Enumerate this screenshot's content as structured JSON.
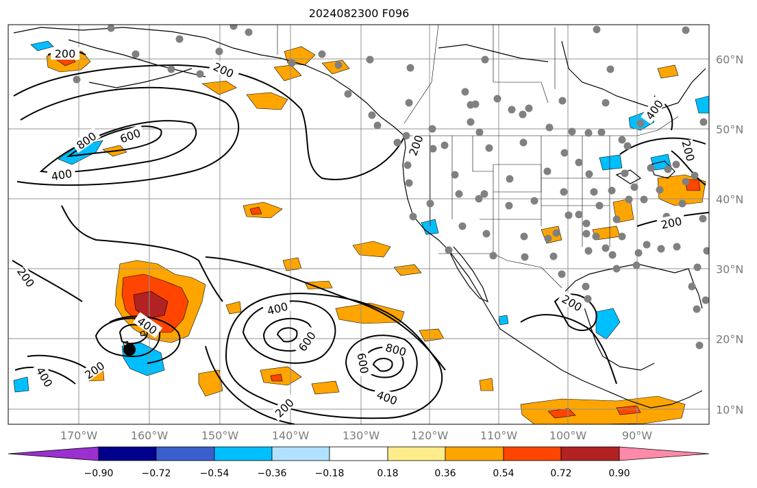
{
  "title": "2024082300 F096",
  "map": {
    "lon_range": [
      -180,
      -80
    ],
    "lat_range": [
      8,
      65
    ],
    "lon_ticks": [
      "170°W",
      "160°W",
      "150°W",
      "140°W",
      "130°W",
      "120°W",
      "110°W",
      "100°W",
      "90°W"
    ],
    "lat_ticks": [
      "10°N",
      "20°N",
      "30°N",
      "40°N",
      "50°N",
      "60°N"
    ],
    "gridlines": true,
    "contour_labels": [
      "200",
      "200",
      "200",
      "200",
      "200",
      "200",
      "200",
      "200",
      "200",
      "400",
      "400",
      "400",
      "400",
      "400",
      "400",
      "600",
      "600",
      "600",
      "800",
      "800"
    ],
    "land_color": "#ffffff",
    "coast_color": "#000000",
    "station_color": "#808080",
    "tc_marker_color": "#000000"
  },
  "colorbar": {
    "labels": [
      "−0.90",
      "−0.72",
      "−0.54",
      "−0.36",
      "−0.18",
      "0.18",
      "0.36",
      "0.54",
      "0.72",
      "0.90"
    ],
    "colors": [
      "#9b30d0",
      "#00008b",
      "#3a5fcd",
      "#00bfff",
      "#b0e2ff",
      "#ffffff",
      "#ffec8b",
      "#ffa500",
      "#ff4500",
      "#b22222",
      "#ff89a8"
    ]
  }
}
